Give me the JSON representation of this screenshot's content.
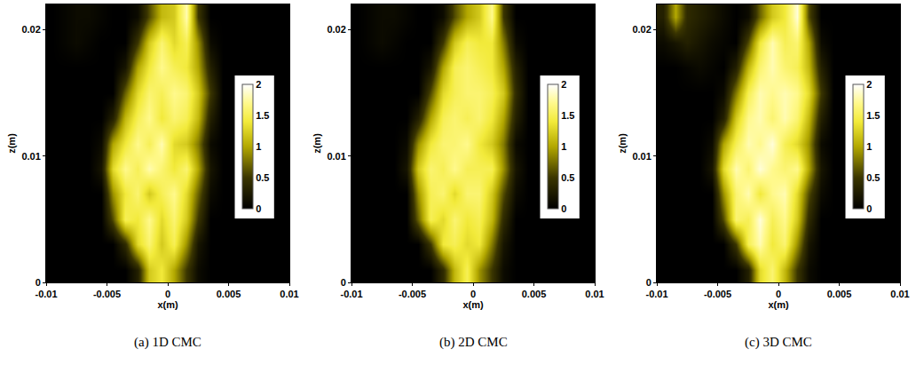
{
  "chart_data": [
    {
      "type": "heatmap",
      "title": "(a) 1D CMC",
      "x_label": "x(m)",
      "y_label": "z(m)",
      "xlim": [
        -0.01,
        0.01
      ],
      "ylim": [
        0,
        0.022
      ],
      "xticks": [
        -0.01,
        -0.005,
        0,
        0.005,
        0.01
      ],
      "yticks": [
        0,
        0.01,
        0.02
      ],
      "colorbar": {
        "range": [
          0,
          2
        ],
        "ticks": [
          0,
          0.5,
          1,
          1.5,
          2
        ]
      },
      "x": [
        -0.0095,
        -0.0085,
        -0.0075,
        -0.0065,
        -0.0055,
        -0.0045,
        -0.0035,
        -0.0025,
        -0.0015,
        -0.0005,
        0.0005,
        0.0015,
        0.0025,
        0.0035,
        0.0045,
        0.0055,
        0.0065,
        0.0075,
        0.0085,
        0.0095
      ],
      "y": [
        0.001,
        0.003,
        0.005,
        0.007,
        0.009,
        0.011,
        0.013,
        0.015,
        0.017,
        0.019,
        0.021
      ],
      "z": [
        [
          0,
          0,
          0,
          0,
          0,
          0,
          0,
          0.3,
          1.2,
          1.4,
          1.0,
          0.5,
          0.1,
          0,
          0,
          0,
          0,
          0,
          0,
          0
        ],
        [
          0,
          0,
          0,
          0,
          0,
          0,
          0.4,
          1.3,
          1.6,
          1.2,
          1.5,
          0.9,
          0.2,
          0,
          0,
          0,
          0,
          0,
          0,
          0
        ],
        [
          0,
          0,
          0,
          0,
          0,
          0.6,
          1.5,
          1.4,
          1.7,
          1.3,
          1.6,
          1.2,
          0.5,
          0,
          0,
          0,
          0,
          0,
          0,
          0
        ],
        [
          0,
          0,
          0,
          0,
          0,
          0.9,
          1.4,
          1.6,
          1.2,
          1.5,
          1.7,
          1.3,
          0.7,
          0.1,
          0,
          0,
          0,
          0,
          0,
          0
        ],
        [
          0,
          0,
          0,
          0,
          0.2,
          1.3,
          1.7,
          1.5,
          1.8,
          1.6,
          1.4,
          1.6,
          1.0,
          0.2,
          0,
          0,
          0,
          0,
          0,
          0
        ],
        [
          0,
          0,
          0,
          0,
          0.1,
          1.0,
          1.4,
          1.7,
          1.5,
          1.8,
          1.3,
          1.2,
          0.8,
          0.1,
          0,
          0,
          0,
          0,
          0,
          0
        ],
        [
          0,
          0,
          0,
          0,
          0,
          0.3,
          1.1,
          1.5,
          1.7,
          1.4,
          1.6,
          1.5,
          1.1,
          0.3,
          0,
          0,
          0,
          0,
          0,
          0
        ],
        [
          0,
          0,
          0,
          0,
          0,
          0,
          0.7,
          1.3,
          1.6,
          1.5,
          1.7,
          1.6,
          1.2,
          0.5,
          0,
          0,
          0,
          0,
          0,
          0
        ],
        [
          0,
          0,
          0,
          0,
          0,
          0,
          0.2,
          1.0,
          1.4,
          1.7,
          1.5,
          1.4,
          1.0,
          0.3,
          0,
          0,
          0,
          0,
          0,
          0
        ],
        [
          0,
          0.05,
          0.1,
          0.05,
          0,
          0,
          0,
          0.5,
          1.2,
          1.6,
          1.3,
          1.5,
          0.9,
          0.1,
          0,
          0,
          0,
          0,
          0,
          0
        ],
        [
          0,
          0.05,
          0.1,
          0.1,
          0.05,
          0,
          0,
          0.1,
          0.6,
          1.1,
          1.2,
          1.8,
          0.5,
          0,
          0,
          0,
          0,
          0,
          0,
          0
        ]
      ]
    },
    {
      "type": "heatmap",
      "title": "(b) 2D CMC",
      "x_label": "x(m)",
      "y_label": "z(m)",
      "xlim": [
        -0.01,
        0.01
      ],
      "ylim": [
        0,
        0.022
      ],
      "xticks": [
        -0.01,
        -0.005,
        0,
        0.005,
        0.01
      ],
      "yticks": [
        0,
        0.01,
        0.02
      ],
      "colorbar": {
        "range": [
          0,
          2
        ],
        "ticks": [
          0,
          0.5,
          1,
          1.5,
          2
        ]
      },
      "x": [
        -0.0095,
        -0.0085,
        -0.0075,
        -0.0065,
        -0.0055,
        -0.0045,
        -0.0035,
        -0.0025,
        -0.0015,
        -0.0005,
        0.0005,
        0.0015,
        0.0025,
        0.0035,
        0.0045,
        0.0055,
        0.0065,
        0.0075,
        0.0085,
        0.0095
      ],
      "y": [
        0.001,
        0.003,
        0.005,
        0.007,
        0.009,
        0.011,
        0.013,
        0.015,
        0.017,
        0.019,
        0.021
      ],
      "z": [
        [
          0,
          0,
          0,
          0,
          0,
          0,
          0,
          0.4,
          1.1,
          1.5,
          0.9,
          0.5,
          0.1,
          0,
          0,
          0,
          0,
          0,
          0,
          0
        ],
        [
          0,
          0,
          0,
          0,
          0,
          0,
          0.5,
          1.4,
          1.5,
          1.3,
          1.4,
          0.8,
          0.2,
          0,
          0,
          0,
          0,
          0,
          0,
          0
        ],
        [
          0,
          0,
          0,
          0,
          0,
          0.7,
          1.5,
          1.3,
          1.6,
          1.4,
          1.5,
          1.1,
          0.4,
          0,
          0,
          0,
          0,
          0,
          0,
          0
        ],
        [
          0,
          0,
          0,
          0,
          0,
          0.9,
          1.5,
          1.6,
          1.3,
          1.6,
          1.6,
          1.2,
          0.6,
          0.1,
          0,
          0,
          0,
          0,
          0,
          0
        ],
        [
          0,
          0,
          0,
          0,
          0.2,
          1.2,
          1.6,
          1.5,
          1.7,
          1.5,
          1.5,
          1.5,
          0.9,
          0.2,
          0,
          0,
          0,
          0,
          0,
          0
        ],
        [
          0,
          0,
          0,
          0,
          0.1,
          0.9,
          1.4,
          1.6,
          1.6,
          1.7,
          1.4,
          1.2,
          0.8,
          0.1,
          0,
          0,
          0,
          0,
          0,
          0
        ],
        [
          0,
          0,
          0,
          0,
          0,
          0.3,
          1.0,
          1.5,
          1.6,
          1.5,
          1.6,
          1.4,
          1.0,
          0.3,
          0,
          0,
          0,
          0,
          0,
          0
        ],
        [
          0,
          0,
          0,
          0,
          0,
          0,
          0.6,
          1.3,
          1.5,
          1.6,
          1.6,
          1.5,
          1.2,
          0.4,
          0,
          0,
          0,
          0,
          0,
          0
        ],
        [
          0,
          0,
          0,
          0,
          0,
          0,
          0.2,
          1.0,
          1.5,
          1.6,
          1.5,
          1.4,
          1.0,
          0.3,
          0,
          0,
          0,
          0,
          0,
          0
        ],
        [
          0,
          0.05,
          0.1,
          0.05,
          0,
          0,
          0,
          0.5,
          1.2,
          1.5,
          1.4,
          1.4,
          0.8,
          0.1,
          0,
          0,
          0,
          0,
          0,
          0
        ],
        [
          0,
          0.05,
          0.1,
          0.1,
          0.05,
          0,
          0,
          0.1,
          0.6,
          1.0,
          1.2,
          1.7,
          0.5,
          0,
          0,
          0,
          0,
          0,
          0,
          0
        ]
      ]
    },
    {
      "type": "heatmap",
      "title": "(c) 3D CMC",
      "x_label": "x(m)",
      "y_label": "z(m)",
      "xlim": [
        -0.01,
        0.01
      ],
      "ylim": [
        0,
        0.022
      ],
      "xticks": [
        -0.01,
        -0.005,
        0,
        0.005,
        0.01
      ],
      "yticks": [
        0,
        0.01,
        0.02
      ],
      "colorbar": {
        "range": [
          0,
          2
        ],
        "ticks": [
          0,
          0.5,
          1,
          1.5,
          2
        ]
      },
      "x": [
        -0.0095,
        -0.0085,
        -0.0075,
        -0.0065,
        -0.0055,
        -0.0045,
        -0.0035,
        -0.0025,
        -0.0015,
        -0.0005,
        0.0005,
        0.0015,
        0.0025,
        0.0035,
        0.0045,
        0.0055,
        0.0065,
        0.0075,
        0.0085,
        0.0095
      ],
      "y": [
        0.001,
        0.003,
        0.005,
        0.007,
        0.009,
        0.011,
        0.013,
        0.015,
        0.017,
        0.019,
        0.021
      ],
      "z": [
        [
          0,
          0,
          0,
          0,
          0,
          0,
          0,
          0.3,
          1.3,
          1.6,
          1.1,
          0.5,
          0.1,
          0,
          0,
          0,
          0,
          0,
          0,
          0
        ],
        [
          0,
          0,
          0,
          0,
          0,
          0,
          0.5,
          1.5,
          1.8,
          1.4,
          1.6,
          0.9,
          0.2,
          0,
          0,
          0,
          0,
          0,
          0,
          0
        ],
        [
          0,
          0,
          0,
          0,
          0,
          0.6,
          1.6,
          1.5,
          1.9,
          1.5,
          1.7,
          1.2,
          0.4,
          0,
          0,
          0,
          0,
          0,
          0,
          0
        ],
        [
          0,
          0,
          0,
          0,
          0,
          0.9,
          1.6,
          1.8,
          1.4,
          1.7,
          1.8,
          1.3,
          0.6,
          0.1,
          0,
          0,
          0,
          0,
          0,
          0
        ],
        [
          0,
          0,
          0,
          0,
          0.2,
          1.3,
          1.8,
          1.6,
          1.9,
          1.7,
          1.6,
          1.7,
          1.0,
          0.2,
          0,
          0,
          0,
          0,
          0,
          0
        ],
        [
          0,
          0,
          0,
          0,
          0.1,
          1.0,
          1.5,
          1.8,
          1.7,
          1.9,
          1.5,
          1.3,
          0.9,
          0.1,
          0,
          0,
          0,
          0,
          0,
          0
        ],
        [
          0,
          0,
          0,
          0,
          0,
          0.3,
          1.2,
          1.7,
          1.8,
          1.6,
          1.8,
          1.6,
          1.1,
          0.3,
          0,
          0,
          0,
          0,
          0,
          0
        ],
        [
          0,
          0,
          0,
          0,
          0,
          0.1,
          0.8,
          1.5,
          1.8,
          1.7,
          1.8,
          1.7,
          1.3,
          0.5,
          0,
          0,
          0,
          0,
          0,
          0
        ],
        [
          0,
          0,
          0.05,
          0.1,
          0.05,
          0,
          0.3,
          1.1,
          1.6,
          1.8,
          1.6,
          1.5,
          1.1,
          0.3,
          0,
          0,
          0,
          0,
          0,
          0
        ],
        [
          0.1,
          0.2,
          0.3,
          0.2,
          0.1,
          0.05,
          0,
          0.6,
          1.4,
          1.8,
          1.5,
          1.6,
          1.0,
          0.1,
          0,
          0,
          0,
          0,
          0,
          0
        ],
        [
          0.3,
          1.0,
          0.4,
          0.3,
          0.2,
          0.1,
          0,
          0.1,
          0.7,
          1.2,
          1.4,
          1.9,
          0.6,
          0,
          0,
          0,
          0,
          0,
          0,
          0
        ]
      ]
    }
  ]
}
